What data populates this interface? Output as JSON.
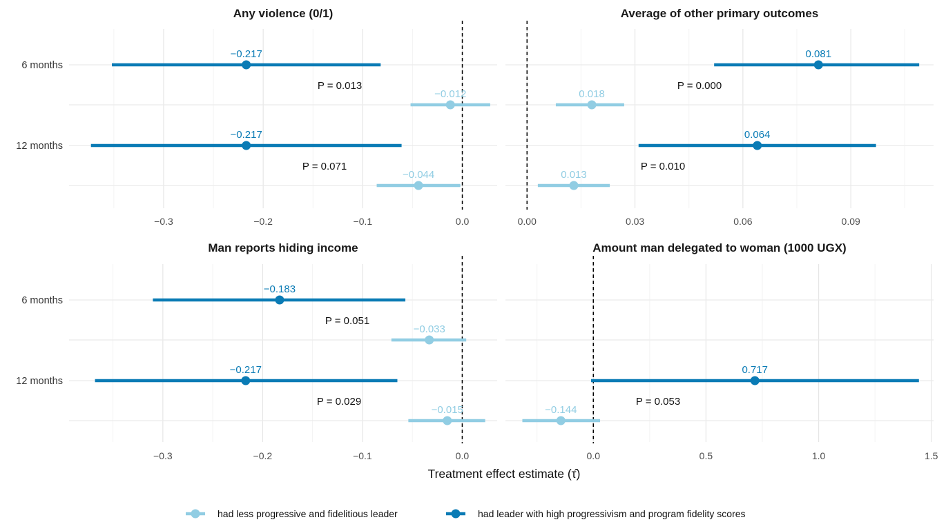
{
  "chart_data": {
    "type": "forest",
    "xlabel": "Treatment effect estimate (τ̂)",
    "colors": {
      "low": "#91cde3",
      "high": "#0a7bb5"
    },
    "legend": {
      "position": "bottom",
      "entries": [
        {
          "key": "low",
          "label": "had less progressive and fidelitious leader"
        },
        {
          "key": "high",
          "label": "had leader with high progressivism and program fidelity scores"
        }
      ]
    },
    "rows": [
      "6 months",
      "12 months"
    ],
    "panels": [
      {
        "title": "Any violence (0/1)",
        "xlim": [
          -0.395,
          0.035
        ],
        "ticks": [
          -0.3,
          -0.2,
          -0.1,
          0.0
        ],
        "tick_labels": [
          "−0.3",
          "−0.2",
          "−0.1",
          "0.0"
        ],
        "show_tick_labels": true,
        "groups": [
          {
            "row": "6 months",
            "p": "P = 0.013",
            "high": {
              "est": -0.217,
              "lo": -0.352,
              "hi": -0.082,
              "label": "−0.217"
            },
            "low": {
              "est": -0.012,
              "lo": -0.052,
              "hi": 0.028,
              "label": "−0.012"
            }
          },
          {
            "row": "12 months",
            "p": "P = 0.071",
            "high": {
              "est": -0.217,
              "lo": -0.373,
              "hi": -0.061,
              "label": "−0.217"
            },
            "low": {
              "est": -0.044,
              "lo": -0.086,
              "hi": -0.002,
              "label": "−0.044"
            }
          }
        ]
      },
      {
        "title": "Average of other primary outcomes",
        "xlim": [
          -0.006,
          0.113
        ],
        "ticks": [
          0.0,
          0.03,
          0.06,
          0.09
        ],
        "tick_labels": [
          "0.00",
          "0.03",
          "0.06",
          "0.09"
        ],
        "show_tick_labels": true,
        "groups": [
          {
            "row": "6 months",
            "p": "P = 0.000",
            "high": {
              "est": 0.081,
              "lo": 0.052,
              "hi": 0.109,
              "label": "0.081"
            },
            "low": {
              "est": 0.018,
              "lo": 0.008,
              "hi": 0.027,
              "label": "0.018"
            }
          },
          {
            "row": "12 months",
            "p": "P = 0.010",
            "high": {
              "est": 0.064,
              "lo": 0.031,
              "hi": 0.097,
              "label": "0.064"
            },
            "low": {
              "est": 0.013,
              "lo": 0.003,
              "hi": 0.023,
              "label": "0.013"
            }
          }
        ]
      },
      {
        "title": "Man reports hiding income",
        "xlim": [
          -0.394,
          0.035
        ],
        "ticks": [
          -0.3,
          -0.2,
          -0.1,
          0.0
        ],
        "tick_labels": [
          "−0.3",
          "−0.2",
          "−0.1",
          "0.0"
        ],
        "show_tick_labels": true,
        "groups": [
          {
            "row": "6 months",
            "p": "P = 0.051",
            "high": {
              "est": -0.183,
              "lo": -0.31,
              "hi": -0.057,
              "label": "−0.183"
            },
            "low": {
              "est": -0.033,
              "lo": -0.071,
              "hi": 0.004,
              "label": "−0.033"
            }
          },
          {
            "row": "12 months",
            "p": "P = 0.029",
            "high": {
              "est": -0.217,
              "lo": -0.368,
              "hi": -0.065,
              "label": "−0.217"
            },
            "low": {
              "est": -0.015,
              "lo": -0.054,
              "hi": 0.023,
              "label": "−0.015"
            }
          }
        ]
      },
      {
        "title": "Amount man delegated to woman (1000 UGX)",
        "xlim": [
          -0.39,
          1.51
        ],
        "ticks": [
          0.0,
          0.5,
          1.0,
          1.5
        ],
        "tick_labels": [
          "0.0",
          "0.5",
          "1.0",
          "1.5"
        ],
        "show_tick_labels": true,
        "groups": [
          {
            "row": "6 months",
            "p": "",
            "high": null,
            "low": null
          },
          {
            "row": "12 months",
            "p": "P = 0.053",
            "high": {
              "est": 0.717,
              "lo": -0.01,
              "hi": 1.445,
              "label": "0.717"
            },
            "low": {
              "est": -0.144,
              "lo": -0.315,
              "hi": 0.03,
              "label": "−0.144"
            }
          }
        ]
      }
    ]
  }
}
